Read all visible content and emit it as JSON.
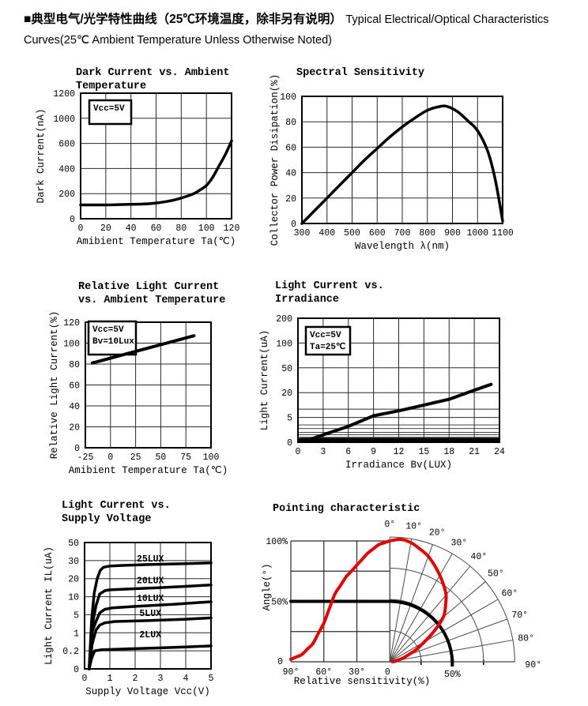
{
  "header": {
    "bold_text": "■典型电气/光学特性曲线（25℃环境温度，除非另有说明）",
    "normal_text": "Typical Electrical/Optical Characteristics Curves(25℃ Ambient Temperature Unless Otherwise Noted)"
  },
  "colors": {
    "curve": "#000000",
    "grid": "#2a2a2a",
    "fan": "#4a4a4a",
    "lobe_red": "#e00404",
    "lux_label_red": "#cc2424"
  },
  "chart_data": [
    {
      "id": "dark-current-vs-temp",
      "type": "line",
      "title": "Dark Current vs. Ambient\nTemperature",
      "xlabel": "Amibient Temperature Ta(℃)",
      "ylabel": "Dark Current(nA)",
      "x_ticks": [
        0,
        20,
        40,
        60,
        80,
        100,
        120
      ],
      "y_ticks": [
        0,
        200,
        400,
        600,
        1000,
        1200
      ],
      "grid": true,
      "inset": [
        "Vcc=5V"
      ],
      "series": [
        {
          "name": "dark-current",
          "color": "#000000",
          "width": 3.5,
          "smooth": true,
          "points": [
            [
              0,
              110
            ],
            [
              20,
              110
            ],
            [
              40,
              115
            ],
            [
              55,
              120
            ],
            [
              70,
              140
            ],
            [
              80,
              165
            ],
            [
              90,
              200
            ],
            [
              95,
              230
            ],
            [
              100,
              265
            ],
            [
              105,
              330
            ],
            [
              110,
              420
            ],
            [
              115,
              510
            ],
            [
              120,
              640
            ]
          ]
        }
      ]
    },
    {
      "id": "spectral-sensitivity",
      "type": "line",
      "title": "Spectral Sensitivity",
      "xlabel": "Wavelength λ(nm)",
      "ylabel": "Collector Power Disipation(%)",
      "x_ticks": [
        300,
        400,
        500,
        600,
        700,
        800,
        900,
        1000,
        1100
      ],
      "y_ticks": [
        0,
        20,
        40,
        60,
        80,
        100
      ],
      "grid": true,
      "series": [
        {
          "name": "spectral-response",
          "color": "#000000",
          "width": 3.5,
          "smooth": true,
          "points": [
            [
              300,
              0
            ],
            [
              350,
              10
            ],
            [
              400,
              20
            ],
            [
              450,
              30
            ],
            [
              500,
              40
            ],
            [
              550,
              50
            ],
            [
              600,
              59
            ],
            [
              650,
              68
            ],
            [
              700,
              76
            ],
            [
              750,
              83
            ],
            [
              800,
              89
            ],
            [
              850,
              92
            ],
            [
              880,
              92
            ],
            [
              920,
              88
            ],
            [
              960,
              81
            ],
            [
              1000,
              73
            ],
            [
              1040,
              57
            ],
            [
              1070,
              35
            ],
            [
              1100,
              2
            ]
          ]
        }
      ]
    },
    {
      "id": "relative-light-current-vs-temp",
      "type": "line",
      "title": "Relative Light Current\nvs. Ambient Temperature",
      "xlabel": "Amibient Temperature Ta(℃)",
      "ylabel": "Relative Light Current(%)",
      "x_ticks": [
        -25,
        0,
        25,
        50,
        75,
        100
      ],
      "y_ticks": [
        0,
        20,
        40,
        60,
        80,
        100,
        120
      ],
      "grid": true,
      "inset": [
        "Vcc=5V",
        "Bv=10Lux"
      ],
      "series": [
        {
          "name": "relative-light-current",
          "color": "#000000",
          "width": 4,
          "smooth": false,
          "points": [
            [
              -18,
              81
            ],
            [
              83,
              107
            ]
          ]
        }
      ]
    },
    {
      "id": "light-current-vs-irradiance",
      "type": "line",
      "title": "Light Current vs.\nIrradiance",
      "xlabel": "Irradiance Bv(LUX)",
      "ylabel": "Light Current(uA)",
      "x_ticks": [
        0,
        3,
        6,
        9,
        12,
        15,
        18,
        21,
        24
      ],
      "y_ticks": [
        0,
        5,
        20,
        50,
        100,
        200
      ],
      "y_minor": [
        1,
        1.5,
        2,
        2.75,
        3.5,
        10
      ],
      "grid": true,
      "inset": [
        "Vcc=5V",
        "Ta=25℃"
      ],
      "series": [
        {
          "name": "light-current",
          "color": "#000000",
          "width": 4,
          "smooth": false,
          "points": [
            [
              1,
              0.3
            ],
            [
              3,
              1.5
            ],
            [
              6,
              3.2
            ],
            [
              9,
              6
            ],
            [
              12,
              9
            ],
            [
              15,
              12.5
            ],
            [
              18,
              16
            ],
            [
              21,
              23
            ],
            [
              23,
              30
            ]
          ]
        },
        {
          "name": "zero-baseline",
          "color": "#000000",
          "width": 6,
          "smooth": false,
          "points": [
            [
              0.3,
              0.45
            ],
            [
              23.8,
              0.45
            ]
          ]
        }
      ]
    },
    {
      "id": "light-current-vs-supply-voltage",
      "type": "line",
      "title": "Light Current vs.\nSupply Voltage",
      "xlabel": "Supply Voltage Vcc(V)",
      "ylabel": "Light Current IL(uA)",
      "x_ticks": [
        0,
        1,
        2,
        3,
        4,
        5
      ],
      "y_ticks": [
        0,
        0.2,
        1,
        5,
        10,
        20,
        30,
        50
      ],
      "grid": true,
      "series": [
        {
          "name": "curve-25lux",
          "color": "#000000",
          "width": 3.5,
          "smooth": false,
          "points": [
            [
              0.18,
              0
            ],
            [
              0.28,
              4
            ],
            [
              0.38,
              12
            ],
            [
              0.5,
              20
            ],
            [
              0.62,
              24.5
            ],
            [
              0.75,
              26.3
            ],
            [
              1,
              27
            ],
            [
              1.5,
              27.3
            ],
            [
              2.5,
              27.8
            ],
            [
              4,
              28.3
            ],
            [
              5,
              28.7
            ]
          ]
        },
        {
          "name": "curve-20lux",
          "color": "#000000",
          "width": 3.5,
          "smooth": false,
          "points": [
            [
              0.18,
              0
            ],
            [
              0.3,
              2.5
            ],
            [
              0.45,
              7.5
            ],
            [
              0.6,
              11.5
            ],
            [
              0.8,
              13.3
            ],
            [
              1,
              13.8
            ],
            [
              1.8,
              14.3
            ],
            [
              3,
              15
            ],
            [
              4,
              15.7
            ],
            [
              5,
              16.5
            ]
          ]
        },
        {
          "name": "curve-10lux",
          "color": "#000000",
          "width": 3.5,
          "smooth": false,
          "points": [
            [
              0.18,
              0
            ],
            [
              0.3,
              1.2
            ],
            [
              0.45,
              3.5
            ],
            [
              0.6,
              5.5
            ],
            [
              0.8,
              6.5
            ],
            [
              1.1,
              6.9
            ],
            [
              2,
              7.3
            ],
            [
              3.5,
              7.9
            ],
            [
              5,
              8.6
            ]
          ]
        },
        {
          "name": "curve-5lux",
          "color": "#000000",
          "width": 3.5,
          "smooth": false,
          "points": [
            [
              0.18,
              0
            ],
            [
              0.3,
              0.5
            ],
            [
              0.45,
              1.6
            ],
            [
              0.6,
              2.7
            ],
            [
              0.8,
              3.2
            ],
            [
              1.2,
              3.5
            ],
            [
              2.5,
              3.7
            ],
            [
              4,
              4
            ],
            [
              5,
              4.3
            ]
          ]
        },
        {
          "name": "curve-2lux",
          "color": "#000000",
          "width": 3.5,
          "smooth": false,
          "points": [
            [
              0.18,
              0
            ],
            [
              0.28,
              0.12
            ],
            [
              0.4,
              0.2
            ],
            [
              0.7,
              0.25
            ],
            [
              1.5,
              0.28
            ],
            [
              3,
              0.33
            ],
            [
              4.2,
              0.38
            ],
            [
              5,
              0.42
            ]
          ]
        }
      ],
      "series_labels": [
        {
          "text": "25LUX",
          "x": 2.6,
          "y": 29.5
        },
        {
          "text": "20LUX",
          "x": 2.6,
          "y": 17.5
        },
        {
          "text": "10LUX",
          "x": 2.6,
          "y": 8.8
        },
        {
          "text": "5LUX",
          "x": 2.6,
          "y": 4.7
        },
        {
          "text": "2LUX",
          "x": 2.6,
          "y": 0.8
        }
      ]
    },
    {
      "id": "pointing-characteristic",
      "type": "polar",
      "title": "Pointing characteristic",
      "xlabel": "Relative sensitivity(%)",
      "ylabel": "Angle(°)",
      "cartesian_x_ticks": [
        "90°",
        "60°",
        "30°",
        "0"
      ],
      "cartesian_y_ticks": [
        "100%",
        "50%",
        "0"
      ],
      "angle_labels": [
        "0°",
        "10°",
        "20°",
        "30°",
        "40°",
        "50°",
        "60°",
        "70°",
        "80°",
        "90°"
      ],
      "radius_label": "50%",
      "radial_rings_pct": [
        25,
        50,
        75,
        100
      ],
      "reference_level_pct": 50,
      "sensitivity": {
        "angles_deg": [
          0,
          10,
          20,
          30,
          40,
          50,
          60,
          70,
          80,
          90
        ],
        "relative_pct": [
          100,
          97,
          90,
          80,
          70,
          56,
          32,
          15,
          6,
          2
        ]
      }
    }
  ]
}
